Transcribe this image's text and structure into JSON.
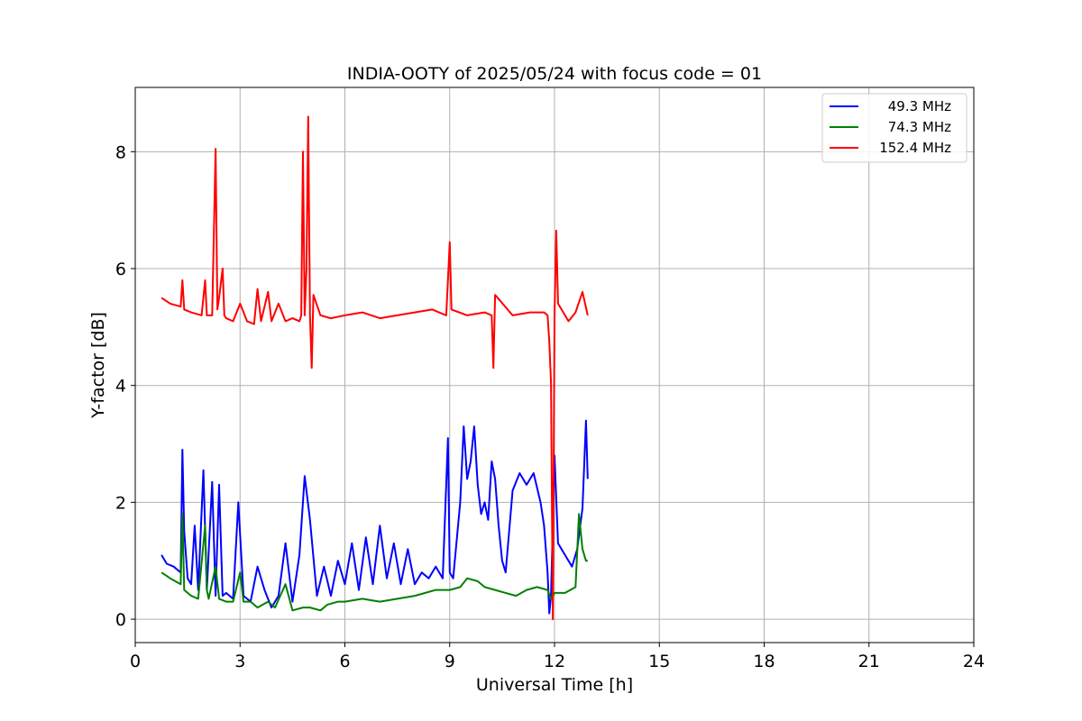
{
  "chart_data": {
    "type": "line",
    "title": "INDIA-OOTY of 2025/05/24 with focus code = 01",
    "xlabel": "Universal Time [h]",
    "ylabel": "Y-factor [dB]",
    "xlim": [
      0,
      24
    ],
    "ylim": [
      -0.4,
      9.1
    ],
    "xticks": [
      0,
      3,
      6,
      9,
      12,
      15,
      18,
      21,
      24
    ],
    "yticks": [
      0,
      2,
      4,
      6,
      8
    ],
    "grid": true,
    "legend_position": "top-right",
    "series": [
      {
        "name": "49.3 MHz",
        "color": "#0000ff",
        "x": [
          0.75,
          0.9,
          1.1,
          1.3,
          1.35,
          1.4,
          1.5,
          1.6,
          1.7,
          1.8,
          1.95,
          2.05,
          2.2,
          2.3,
          2.4,
          2.5,
          2.6,
          2.8,
          2.95,
          3.1,
          3.3,
          3.5,
          3.7,
          3.9,
          4.1,
          4.3,
          4.5,
          4.7,
          4.85,
          5.0,
          5.2,
          5.4,
          5.6,
          5.8,
          6.0,
          6.2,
          6.4,
          6.6,
          6.8,
          7.0,
          7.2,
          7.4,
          7.6,
          7.8,
          8.0,
          8.2,
          8.4,
          8.6,
          8.8,
          8.95,
          9.0,
          9.1,
          9.3,
          9.4,
          9.5,
          9.6,
          9.7,
          9.8,
          9.9,
          10.0,
          10.1,
          10.2,
          10.3,
          10.4,
          10.5,
          10.6,
          10.8,
          11.0,
          11.2,
          11.4,
          11.6,
          11.7,
          11.8,
          11.85,
          11.9,
          12.0,
          12.1,
          12.3,
          12.5,
          12.65,
          12.8,
          12.9,
          12.95
        ],
        "values": [
          1.1,
          0.95,
          0.9,
          0.8,
          2.9,
          1.5,
          0.7,
          0.6,
          1.6,
          0.5,
          2.55,
          0.5,
          2.35,
          0.4,
          2.3,
          0.4,
          0.45,
          0.35,
          2.0,
          0.4,
          0.3,
          0.9,
          0.5,
          0.2,
          0.4,
          1.3,
          0.3,
          1.1,
          2.45,
          1.7,
          0.4,
          0.9,
          0.4,
          1.0,
          0.6,
          1.3,
          0.5,
          1.4,
          0.6,
          1.6,
          0.7,
          1.3,
          0.6,
          1.2,
          0.6,
          0.8,
          0.7,
          0.9,
          0.7,
          3.1,
          0.8,
          0.7,
          2.0,
          3.3,
          2.4,
          2.7,
          3.3,
          2.3,
          1.8,
          2.0,
          1.7,
          2.7,
          2.4,
          1.6,
          1.0,
          0.8,
          2.2,
          2.5,
          2.3,
          2.5,
          2.0,
          1.6,
          0.8,
          0.1,
          0.4,
          2.8,
          1.3,
          1.1,
          0.9,
          1.2,
          1.9,
          3.4,
          2.4
        ]
      },
      {
        "name": "74.3 MHz",
        "color": "#008000",
        "x": [
          0.75,
          1.0,
          1.3,
          1.35,
          1.4,
          1.6,
          1.8,
          2.0,
          2.05,
          2.1,
          2.3,
          2.4,
          2.6,
          2.8,
          3.0,
          3.1,
          3.3,
          3.5,
          3.8,
          4.0,
          4.3,
          4.5,
          4.8,
          5.0,
          5.3,
          5.5,
          5.8,
          6.0,
          6.5,
          7.0,
          7.5,
          8.0,
          8.3,
          8.6,
          9.0,
          9.3,
          9.5,
          9.8,
          10.0,
          10.3,
          10.6,
          10.9,
          11.2,
          11.5,
          11.8,
          11.9,
          12.0,
          12.3,
          12.6,
          12.7,
          12.8,
          12.9,
          12.95
        ],
        "values": [
          0.8,
          0.7,
          0.6,
          1.8,
          0.5,
          0.4,
          0.35,
          1.6,
          0.5,
          0.35,
          0.9,
          0.35,
          0.3,
          0.3,
          0.8,
          0.3,
          0.3,
          0.2,
          0.3,
          0.2,
          0.6,
          0.15,
          0.2,
          0.2,
          0.15,
          0.25,
          0.3,
          0.3,
          0.35,
          0.3,
          0.35,
          0.4,
          0.45,
          0.5,
          0.5,
          0.55,
          0.7,
          0.65,
          0.55,
          0.5,
          0.45,
          0.4,
          0.5,
          0.55,
          0.5,
          0.35,
          0.45,
          0.45,
          0.55,
          1.8,
          1.2,
          1.0,
          1.0
        ]
      },
      {
        "name": "152.4 MHz",
        "color": "#ff0000",
        "x": [
          0.75,
          1.0,
          1.3,
          1.35,
          1.4,
          1.6,
          1.9,
          2.0,
          2.05,
          2.2,
          2.3,
          2.35,
          2.4,
          2.5,
          2.55,
          2.6,
          2.8,
          3.0,
          3.2,
          3.4,
          3.5,
          3.6,
          3.8,
          3.9,
          4.1,
          4.3,
          4.5,
          4.7,
          4.75,
          4.8,
          4.85,
          4.9,
          4.95,
          5.0,
          5.05,
          5.1,
          5.3,
          5.6,
          6.0,
          6.5,
          7.0,
          7.5,
          8.0,
          8.5,
          8.9,
          9.0,
          9.05,
          9.5,
          10.0,
          10.2,
          10.25,
          10.3,
          10.8,
          11.3,
          11.7,
          11.8,
          11.85,
          11.9,
          11.95,
          12.0,
          12.05,
          12.1,
          12.2,
          12.4,
          12.6,
          12.8,
          12.95
        ],
        "values": [
          5.5,
          5.4,
          5.35,
          5.8,
          5.3,
          5.25,
          5.2,
          5.8,
          5.2,
          5.2,
          8.05,
          5.3,
          5.5,
          6.0,
          5.2,
          5.15,
          5.1,
          5.4,
          5.1,
          5.05,
          5.65,
          5.1,
          5.6,
          5.1,
          5.4,
          5.1,
          5.15,
          5.1,
          5.2,
          8.0,
          5.2,
          6.0,
          8.6,
          5.2,
          4.3,
          5.55,
          5.2,
          5.15,
          5.2,
          5.25,
          5.15,
          5.2,
          5.25,
          5.3,
          5.2,
          6.45,
          5.3,
          5.2,
          5.25,
          5.2,
          4.3,
          5.55,
          5.2,
          5.25,
          5.25,
          5.2,
          4.75,
          4.05,
          0.0,
          5.2,
          6.65,
          5.4,
          5.3,
          5.1,
          5.25,
          5.6,
          5.2
        ]
      }
    ]
  }
}
